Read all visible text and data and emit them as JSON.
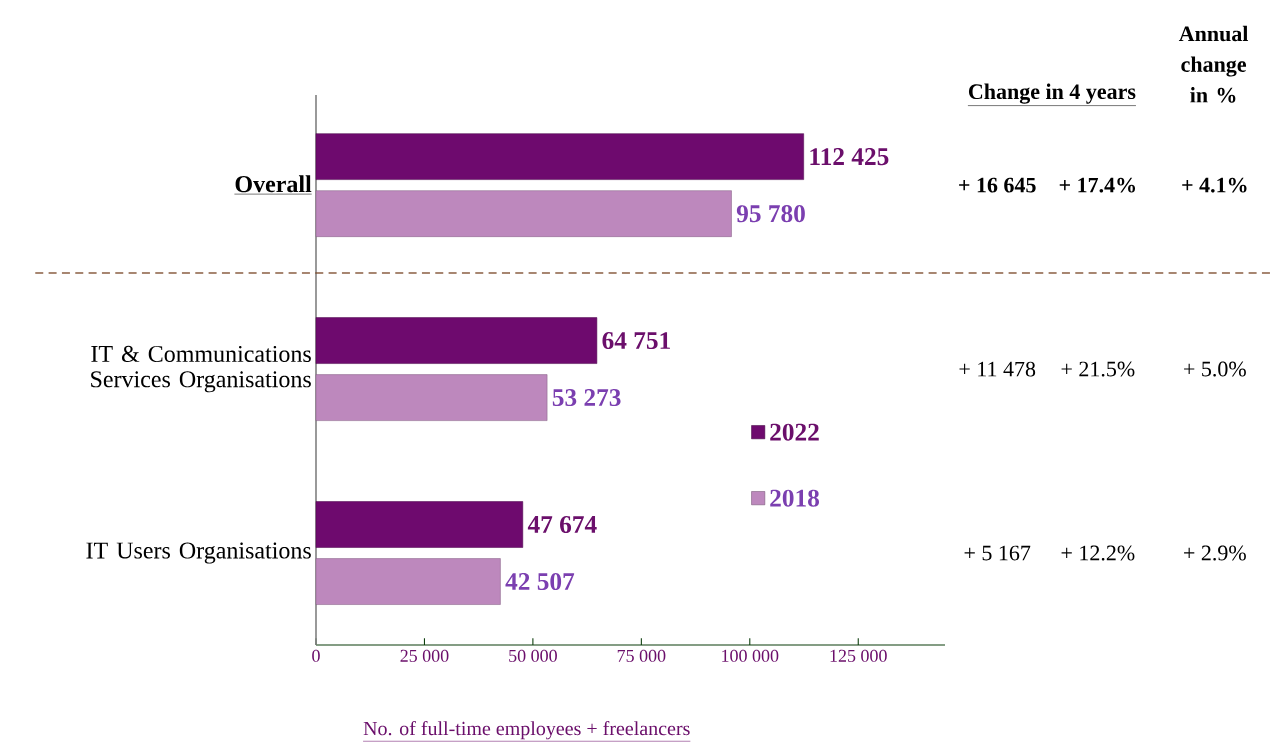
{
  "chart_data": {
    "type": "bar",
    "orientation": "horizontal",
    "categories": [
      "Overall",
      "IT & Communications Services Organisations",
      "IT Users Organisations"
    ],
    "series": [
      {
        "name": "2022",
        "color": "#6e0a6e",
        "values": [
          112425,
          64751,
          47674
        ],
        "value_labels": [
          "112 425",
          "64 751",
          "47 674"
        ]
      },
      {
        "name": "2018",
        "color": "#bd88bd",
        "values": [
          95780,
          53273,
          42507
        ],
        "value_labels": [
          "95 780",
          "53 273",
          "42 507"
        ]
      }
    ],
    "xlabel": "No. of full-time employees + freelancers",
    "xlim": [
      0,
      145000
    ],
    "xticks": [
      0,
      {
        "value": 25000,
        "label": "25 000"
      },
      {
        "value": 50000,
        "label": "50 000"
      },
      {
        "value": 75000,
        "label": "75 000"
      },
      {
        "value": 100000,
        "label": "100 000"
      },
      {
        "value": 125000,
        "label": "125 000"
      }
    ],
    "legend": "right",
    "grid": false,
    "annotations": [
      "Change in 4 years",
      "Annual change in %",
      "+ 16 645",
      "+ 17.4%",
      "+ 4.1%",
      "+ 11 478",
      "+ 21.5%",
      "+ 5.0%",
      "+ 5 167",
      "+ 12.2%",
      "+ 2.9%"
    ]
  }
}
